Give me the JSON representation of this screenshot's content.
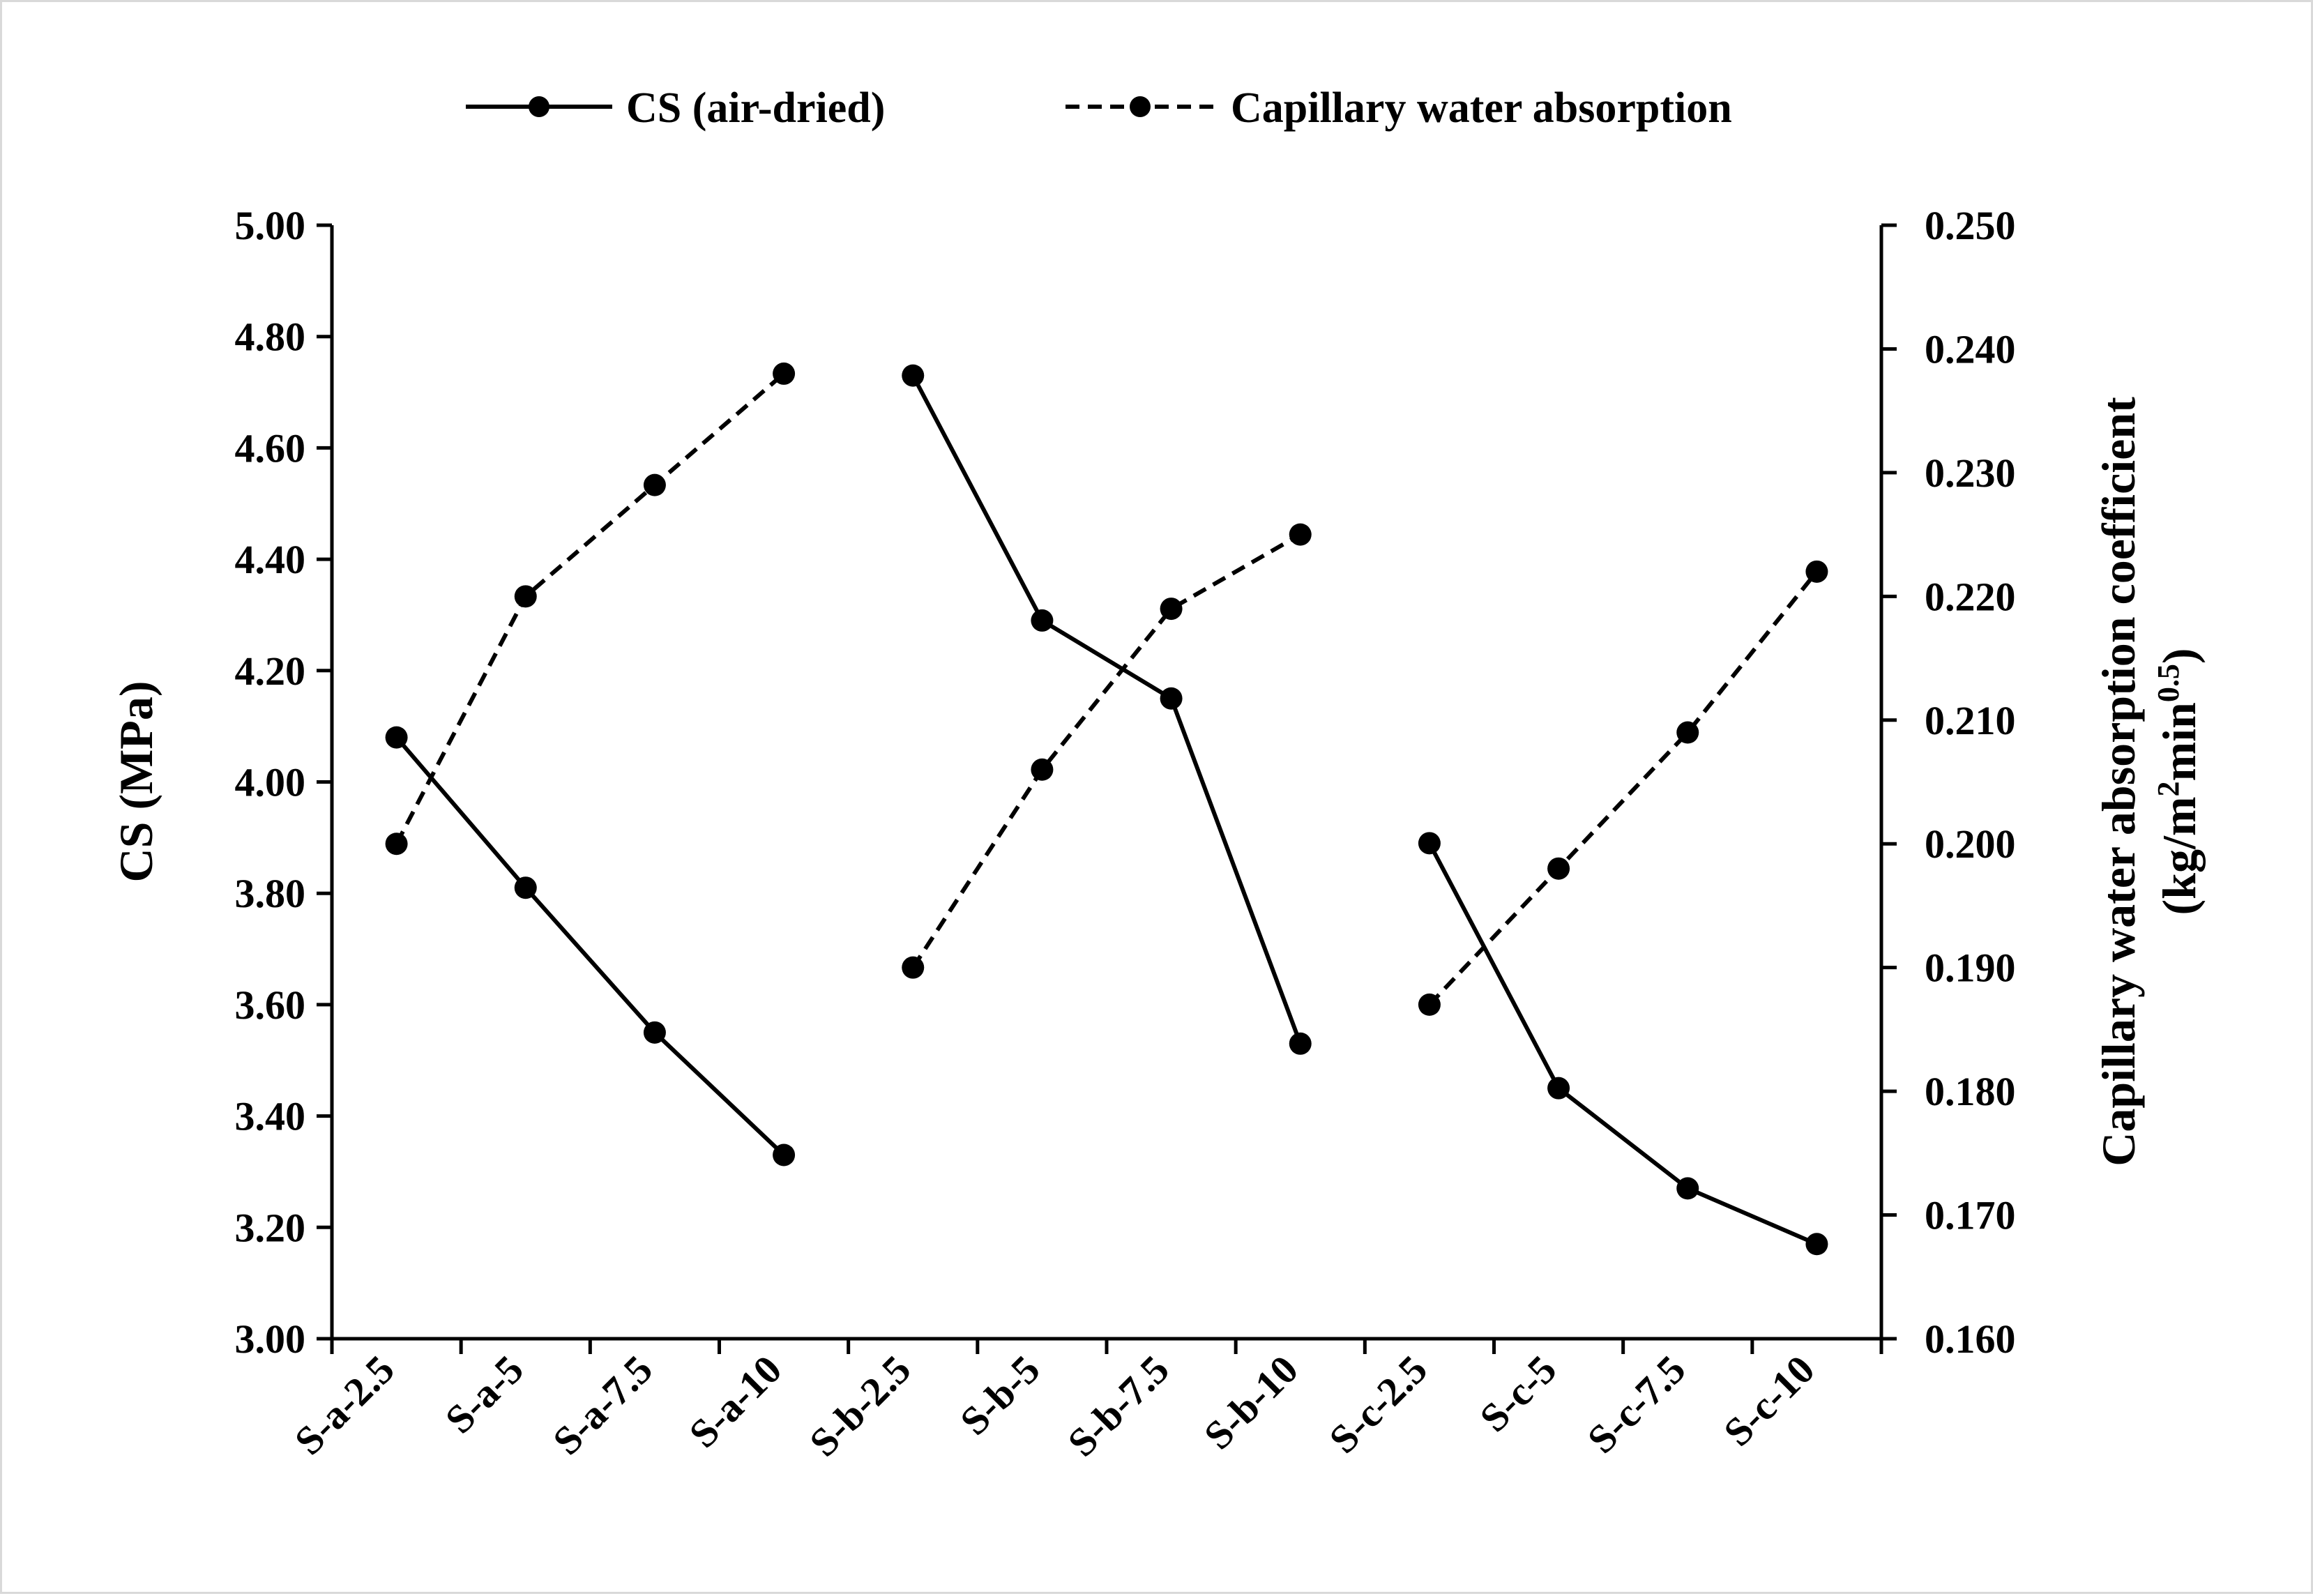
{
  "chart_data": {
    "type": "line",
    "categories": [
      "S-a-2.5",
      "S-a-5",
      "S-a-7.5",
      "S-a-10",
      "S-b-2.5",
      "S-b-5",
      "S-b-7.5",
      "S-b-10",
      "S-c-2.5",
      "S-c-5",
      "S-c-7.5",
      "S-c-10"
    ],
    "groups": [
      [
        0,
        1,
        2,
        3
      ],
      [
        4,
        5,
        6,
        7
      ],
      [
        8,
        9,
        10,
        11
      ]
    ],
    "series": [
      {
        "name": "CS (air-dried)",
        "axis": "left",
        "style": "solid",
        "values": [
          4.08,
          3.81,
          3.55,
          3.33,
          4.73,
          4.29,
          4.15,
          3.53,
          3.89,
          3.45,
          3.27,
          3.17
        ]
      },
      {
        "name": "Capillary water absorption",
        "axis": "right",
        "style": "dashed",
        "values": [
          0.2,
          0.22,
          0.229,
          0.238,
          0.19,
          0.206,
          0.219,
          0.225,
          0.187,
          0.198,
          0.209,
          0.222
        ]
      }
    ],
    "ylabel": "CS (MPa)",
    "y2label_line1": "Capillary water absorption coefficient",
    "y2label_prefix": "(kg/m",
    "y2label_sup1": "2",
    "y2label_mid": "min",
    "y2label_sup2": "0.5",
    "y2label_suffix": ")",
    "ylim": [
      3.0,
      5.0
    ],
    "y2lim": [
      0.16,
      0.25
    ],
    "yticks": [
      "3.00",
      "3.20",
      "3.40",
      "3.60",
      "3.80",
      "4.00",
      "4.20",
      "4.40",
      "4.60",
      "4.80",
      "5.00"
    ],
    "y2ticks": [
      "0.160",
      "0.170",
      "0.180",
      "0.190",
      "0.200",
      "0.210",
      "0.220",
      "0.230",
      "0.240",
      "0.250"
    ],
    "legend_position": "top-center",
    "grid": false
  },
  "colors": {
    "line": "#000000",
    "frame": "#d9d9d9",
    "background": "#ffffff"
  }
}
